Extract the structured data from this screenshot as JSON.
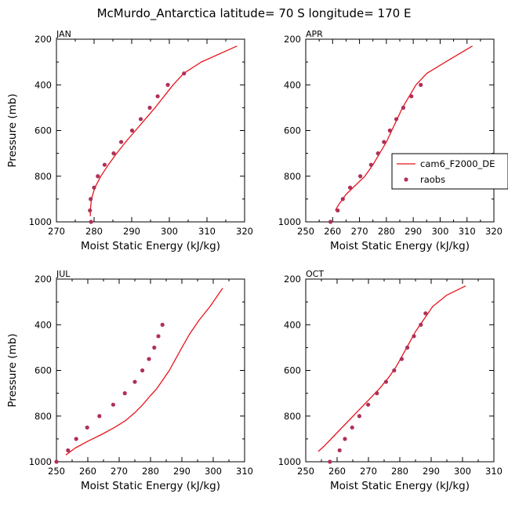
{
  "title": "McMurdo_Antarctica  latitude= 70 S longitude= 170 E",
  "colors": {
    "model_line": "#e8141c",
    "raobs_dot": "#b0305a"
  },
  "legend": {
    "model_label": "cam6_F2000_DE",
    "obs_label": "raobs"
  },
  "chart_data": [
    {
      "type": "line",
      "panel": "JAN",
      "xlabel": "Moist Static Energy (kJ/kg)",
      "ylabel": "Pressure (mb)",
      "xlim": [
        270,
        320
      ],
      "ylim": [
        1000,
        200
      ],
      "xticks": [
        "270",
        "280",
        "290",
        "300",
        "310",
        "320"
      ],
      "yticks": [
        "200",
        "400",
        "600",
        "800",
        "1000"
      ],
      "series": [
        {
          "name": "cam6_F2000_DE",
          "style": "line",
          "x": [
            279.0,
            279.0,
            279.3,
            280.2,
            281.8,
            283.8,
            286.0,
            288.4,
            291.0,
            293.6,
            296.2,
            298.6,
            301.0,
            303.8,
            308.5,
            318.0
          ],
          "y": [
            975,
            950,
            900,
            850,
            800,
            750,
            700,
            650,
            600,
            550,
            500,
            450,
            400,
            350,
            300,
            230
          ]
        },
        {
          "name": "raobs",
          "style": "dots",
          "x": [
            279.2,
            278.9,
            279.1,
            280.0,
            281.0,
            282.8,
            285.2,
            287.2,
            290.1,
            292.4,
            294.8,
            296.9,
            299.6,
            303.9
          ],
          "y": [
            1000,
            950,
            900,
            850,
            800,
            750,
            700,
            650,
            600,
            550,
            500,
            450,
            400,
            350
          ]
        }
      ]
    },
    {
      "type": "line",
      "panel": "APR",
      "xlabel": "Moist Static Energy (kJ/kg)",
      "ylabel": "",
      "xlim": [
        250,
        320
      ],
      "ylim": [
        1000,
        200
      ],
      "xticks": [
        "250",
        "260",
        "270",
        "280",
        "290",
        "300",
        "310",
        "320"
      ],
      "yticks": [
        "200",
        "400",
        "600",
        "800",
        "1000"
      ],
      "legend": true,
      "series": [
        {
          "name": "cam6_F2000_DE",
          "style": "line",
          "x": [
            261.0,
            262.5,
            265.0,
            268.5,
            272.0,
            275.0,
            277.5,
            280.0,
            282.0,
            284.0,
            286.0,
            288.5,
            291.0,
            295.0,
            302.0,
            312.0
          ],
          "y": [
            950,
            920,
            880,
            840,
            800,
            750,
            700,
            650,
            600,
            550,
            500,
            450,
            400,
            350,
            300,
            230
          ]
        },
        {
          "name": "raobs",
          "style": "dots",
          "x": [
            259.2,
            261.9,
            263.8,
            266.5,
            270.3,
            274.3,
            276.9,
            279.1,
            281.3,
            283.7,
            286.3,
            289.3,
            292.8
          ],
          "y": [
            1000,
            950,
            900,
            850,
            800,
            750,
            700,
            650,
            600,
            550,
            500,
            450,
            400
          ]
        }
      ]
    },
    {
      "type": "line",
      "panel": "JUL",
      "xlabel": "Moist Static Energy (kJ/kg)",
      "ylabel": "Pressure (mb)",
      "xlim": [
        250,
        310
      ],
      "ylim": [
        1000,
        200
      ],
      "xticks": [
        "250",
        "260",
        "270",
        "280",
        "290",
        "300",
        "310"
      ],
      "yticks": [
        "200",
        "400",
        "600",
        "800",
        "1000"
      ],
      "series": [
        {
          "name": "cam6_F2000_DE",
          "style": "line",
          "x": [
            253.0,
            256.0,
            260.0,
            264.5,
            268.5,
            272.0,
            275.0,
            277.5,
            280.0,
            282.0,
            284.0,
            286.0,
            288.0,
            290.0,
            292.5,
            295.5,
            299.0,
            303.0
          ],
          "y": [
            970,
            940,
            910,
            880,
            850,
            820,
            785,
            750,
            710,
            680,
            640,
            600,
            550,
            500,
            440,
            380,
            320,
            240
          ]
        },
        {
          "name": "raobs",
          "style": "dots",
          "x": [
            250.0,
            253.7,
            256.3,
            259.8,
            263.7,
            268.1,
            271.8,
            275.0,
            277.4,
            279.5,
            281.2,
            282.5,
            283.8
          ],
          "y": [
            1000,
            950,
            900,
            850,
            800,
            750,
            700,
            650,
            600,
            550,
            500,
            450,
            400
          ]
        }
      ]
    },
    {
      "type": "line",
      "panel": "OCT",
      "xlabel": "Moist Static Energy (kJ/kg)",
      "ylabel": "",
      "xlim": [
        250,
        310
      ],
      "ylim": [
        1000,
        200
      ],
      "xticks": [
        "250",
        "260",
        "270",
        "280",
        "290",
        "300",
        "310"
      ],
      "yticks": [
        "200",
        "400",
        "600",
        "800",
        "1000"
      ],
      "series": [
        {
          "name": "cam6_F2000_DE",
          "style": "line",
          "x": [
            254.0,
            256.0,
            259.5,
            263.0,
            266.5,
            270.0,
            273.5,
            276.5,
            279.0,
            281.0,
            283.0,
            285.0,
            287.5,
            290.5,
            295.0,
            301.0
          ],
          "y": [
            955,
            930,
            880,
            830,
            780,
            730,
            680,
            630,
            580,
            530,
            480,
            430,
            380,
            320,
            270,
            230
          ]
        },
        {
          "name": "raobs",
          "style": "dots",
          "x": [
            257.7,
            260.8,
            262.5,
            264.8,
            267.1,
            269.9,
            272.7,
            275.6,
            278.2,
            280.6,
            282.4,
            284.5,
            286.7,
            288.2
          ],
          "y": [
            1000,
            950,
            900,
            850,
            800,
            750,
            700,
            650,
            600,
            550,
            500,
            450,
            400,
            350
          ]
        }
      ]
    }
  ]
}
